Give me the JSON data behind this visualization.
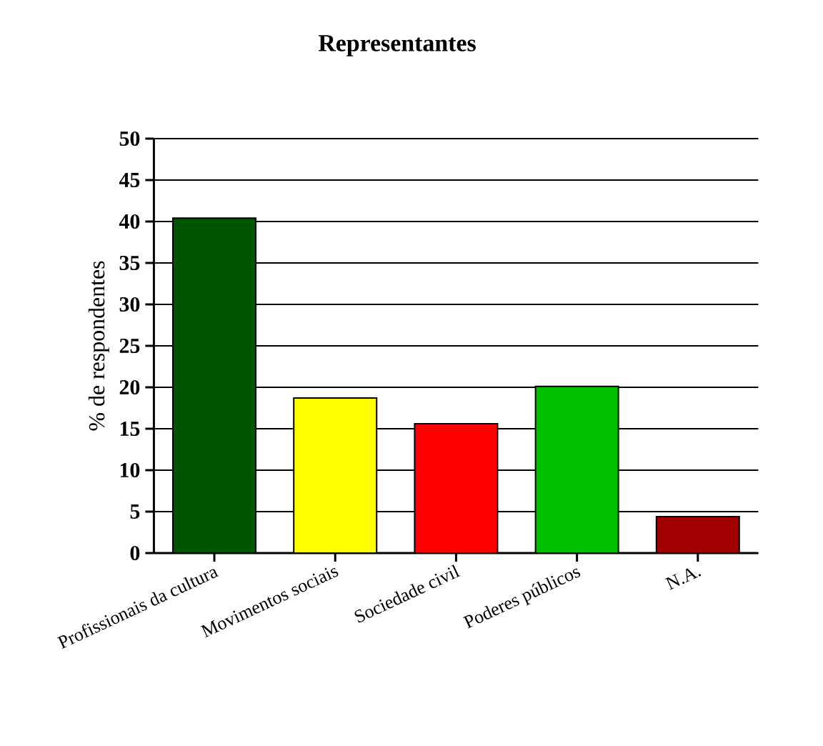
{
  "chart_data": {
    "type": "bar",
    "title": "Representantes",
    "ylabel": "% de respondentes",
    "categories": [
      "Profissionais da cultura",
      "Movimentos sociais",
      "Sociedade civil",
      "Poderes públicos",
      "N.A."
    ],
    "values": [
      40.4,
      18.7,
      15.6,
      20.1,
      4.4
    ],
    "colors": [
      "#005500",
      "#ffff00",
      "#ff0000",
      "#00c000",
      "#a00000"
    ],
    "ylim": [
      0,
      50
    ],
    "yticks": [
      0,
      5,
      10,
      15,
      20,
      25,
      30,
      35,
      40,
      45,
      50
    ],
    "grid": "y"
  }
}
